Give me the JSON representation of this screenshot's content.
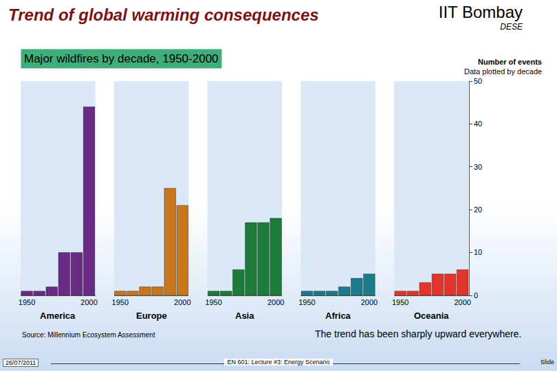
{
  "header": {
    "title": "Trend of global warming consequences",
    "institution": "IIT Bombay",
    "department": "DESE"
  },
  "footer": {
    "date": "26/07/2011",
    "lecture": "EN 601: Lecture #3: Energy Scenario",
    "slide": "Slide"
  },
  "chart_data": {
    "type": "bar",
    "title": "Major wildfires by decade, 1950-2000",
    "ylabel": "Number of events",
    "subtitle": "Data plotted by decade",
    "source": "Source: Millennium Ecosystem Assessment",
    "annotation": "The trend has been sharply upward everywhere.",
    "categories": [
      "1950",
      null,
      null,
      null,
      null,
      "2000"
    ],
    "series": [
      {
        "name": "America",
        "color": "#6a2b86",
        "values": [
          1,
          1,
          2,
          10,
          10,
          44
        ]
      },
      {
        "name": "Europe",
        "color": "#c8761e",
        "values": [
          1,
          1,
          2,
          2,
          25,
          21
        ]
      },
      {
        "name": "Asia",
        "color": "#1c7a3a",
        "values": [
          1,
          1,
          6,
          17,
          17,
          18
        ]
      },
      {
        "name": "Africa",
        "color": "#1b7b8a",
        "values": [
          1,
          1,
          1,
          2,
          4,
          5
        ]
      },
      {
        "name": "Oceania",
        "color": "#e2352b",
        "values": [
          1,
          1,
          3,
          5,
          5,
          6
        ]
      }
    ],
    "ylim": [
      0,
      50
    ],
    "yticks": [
      0,
      10,
      20,
      30,
      40,
      50
    ],
    "grid": false
  }
}
